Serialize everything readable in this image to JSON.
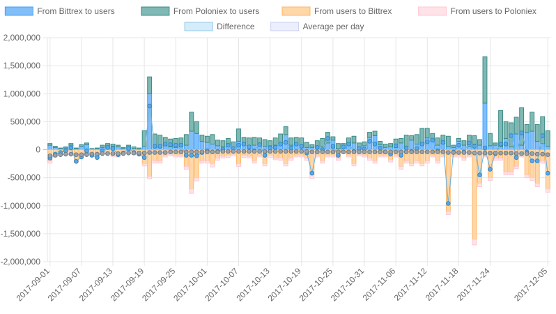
{
  "colors": {
    "bittrex_to_users": "#3fa0ff",
    "poloniex_to_users": "#4a9e98",
    "users_to_bittrex": "#ffb764",
    "users_to_poloniex": "#ffc7d2",
    "difference": "#8fc8ea",
    "average": "#c9cff2",
    "grid": "#e6e6e6",
    "zero_line": "#bdbdbd",
    "text": "#666666"
  },
  "legend": [
    {
      "label": "From Bittrex to users",
      "fill": "#82bef7",
      "stroke": "#3fa0ff"
    },
    {
      "label": "From Poloniex to users",
      "fill": "#7fb8b4",
      "stroke": "#3b8b85"
    },
    {
      "label": "From users to Bittrex",
      "fill": "#ffd7a8",
      "stroke": "#ffb764"
    },
    {
      "label": "From users to Poloniex",
      "fill": "#ffe3e8",
      "stroke": "#ffc7d2"
    },
    {
      "label": "Difference",
      "fill": "#d6ecf8",
      "stroke": "#8fc8ea"
    },
    {
      "label": "Average per day",
      "fill": "#eceefb",
      "stroke": "#c9cff2"
    }
  ],
  "chart_data": {
    "type": "bar",
    "ylim": [
      -2000000,
      2000000
    ],
    "y_ticks": [
      2000000,
      1500000,
      1000000,
      500000,
      0,
      -500000,
      -1000000,
      -1500000,
      -2000000
    ],
    "y_tick_labels": [
      "2,000,000",
      "1,500,000",
      "1,000,000",
      "500,000",
      "0",
      "-500,000",
      "-1,000,000",
      "-1,500,000",
      "-2,000,000"
    ],
    "x_tick_labels": [
      "2017-09-01",
      "2017-09-07",
      "2017-09-13",
      "2017-09-19",
      "2017-09-25",
      "2017-10-01",
      "2017-10-07",
      "2017-10-13",
      "2017-10-19",
      "2017-10-25",
      "2017-10-31",
      "2017-11-06",
      "2017-11-12",
      "2017-11-18",
      "2017-11-24",
      "2017-12-05"
    ],
    "x_tick_indices": [
      0,
      6,
      12,
      18,
      24,
      30,
      36,
      42,
      48,
      54,
      60,
      66,
      72,
      78,
      84,
      95
    ],
    "grid": true,
    "legend_position": "top",
    "series": [
      {
        "name": "From Bittrex to users",
        "stack": "positive",
        "values": [
          80000,
          40000,
          20000,
          30000,
          80000,
          20000,
          60000,
          90000,
          10000,
          20000,
          40000,
          70000,
          60000,
          50000,
          20000,
          50000,
          20000,
          10000,
          60000,
          1000000,
          50000,
          40000,
          70000,
          50000,
          40000,
          60000,
          80000,
          330000,
          290000,
          150000,
          130000,
          100000,
          70000,
          50000,
          100000,
          40000,
          150000,
          120000,
          60000,
          80000,
          100000,
          60000,
          70000,
          80000,
          110000,
          270000,
          80000,
          90000,
          80000,
          40000,
          40000,
          60000,
          50000,
          120000,
          170000,
          20000,
          30000,
          80000,
          120000,
          40000,
          70000,
          220000,
          250000,
          90000,
          40000,
          50000,
          40000,
          120000,
          50000,
          170000,
          100000,
          90000,
          210000,
          170000,
          80000,
          110000,
          60000,
          40000,
          150000,
          80000,
          60000,
          100000,
          80000,
          830000,
          70000,
          80000,
          50000,
          200000,
          50000,
          280000,
          80000,
          310000,
          330000,
          150000,
          110000,
          60000
        ]
      },
      {
        "name": "From Poloniex to users",
        "stack": "positive",
        "values": [
          30000,
          20000,
          10000,
          20000,
          30000,
          10000,
          30000,
          30000,
          10000,
          10000,
          40000,
          40000,
          40000,
          30000,
          20000,
          30000,
          30000,
          20000,
          280000,
          300000,
          230000,
          220000,
          150000,
          140000,
          160000,
          150000,
          190000,
          340000,
          210000,
          110000,
          110000,
          170000,
          100000,
          110000,
          100000,
          100000,
          220000,
          100000,
          150000,
          140000,
          110000,
          120000,
          90000,
          130000,
          170000,
          140000,
          130000,
          130000,
          130000,
          90000,
          50000,
          100000,
          150000,
          190000,
          60000,
          90000,
          80000,
          130000,
          120000,
          80000,
          70000,
          90000,
          80000,
          60000,
          60000,
          60000,
          150000,
          80000,
          210000,
          80000,
          170000,
          290000,
          170000,
          120000,
          130000,
          150000,
          180000,
          40000,
          50000,
          80000,
          200000,
          150000,
          100000,
          830000,
          220000,
          40000,
          650000,
          300000,
          430000,
          300000,
          670000,
          140000,
          340000,
          300000,
          480000,
          280000
        ]
      },
      {
        "name": "From users to Bittrex",
        "stack": "negative",
        "values": [
          -200000,
          -100000,
          -60000,
          -30000,
          -50000,
          -200000,
          -100000,
          -60000,
          -80000,
          -100000,
          -40000,
          -40000,
          -90000,
          -100000,
          -60000,
          -40000,
          -70000,
          -60000,
          -250000,
          -480000,
          -200000,
          -200000,
          -100000,
          -80000,
          -100000,
          -100000,
          -300000,
          -700000,
          -500000,
          -200000,
          -200000,
          -250000,
          -150000,
          -120000,
          -100000,
          -80000,
          -250000,
          -100000,
          -120000,
          -200000,
          -100000,
          -250000,
          -100000,
          -150000,
          -150000,
          -250000,
          -150000,
          -100000,
          -100000,
          -150000,
          -450000,
          -100000,
          -200000,
          -100000,
          -100000,
          -150000,
          -40000,
          -100000,
          -250000,
          -80000,
          -100000,
          -150000,
          -200000,
          -100000,
          -100000,
          -180000,
          -100000,
          -300000,
          -200000,
          -250000,
          -200000,
          -250000,
          -200000,
          -100000,
          -200000,
          -100000,
          -1100000,
          -100000,
          -100000,
          -150000,
          -100000,
          -1600000,
          -600000,
          -100000,
          -500000,
          -150000,
          -150000,
          -400000,
          -400000,
          -300000,
          -100000,
          -450000,
          -500000,
          -600000,
          -200000,
          -700000
        ]
      },
      {
        "name": "From users to Poloniex",
        "stack": "negative",
        "values": [
          -40000,
          -30000,
          -20000,
          -30000,
          -20000,
          -30000,
          -20000,
          -20000,
          -30000,
          -30000,
          -30000,
          -30000,
          -30000,
          -30000,
          -20000,
          -30000,
          -20000,
          -30000,
          -40000,
          -40000,
          -40000,
          -40000,
          -30000,
          -30000,
          -30000,
          -30000,
          -50000,
          -80000,
          -60000,
          -40000,
          -40000,
          -60000,
          -40000,
          -30000,
          -40000,
          -30000,
          -50000,
          -40000,
          -30000,
          -40000,
          -30000,
          -40000,
          -40000,
          -30000,
          -40000,
          -40000,
          -40000,
          -30000,
          -30000,
          -40000,
          -60000,
          -30000,
          -40000,
          -30000,
          -30000,
          -40000,
          -30000,
          -30000,
          -40000,
          -30000,
          -30000,
          -40000,
          -40000,
          -30000,
          -30000,
          -40000,
          -30000,
          -50000,
          -40000,
          -40000,
          -40000,
          -40000,
          -40000,
          -30000,
          -40000,
          -30000,
          -60000,
          -30000,
          -30000,
          -40000,
          -30000,
          -100000,
          -60000,
          -30000,
          -50000,
          -40000,
          -40000,
          -50000,
          -50000,
          -40000,
          -30000,
          -50000,
          -50000,
          -60000,
          -40000,
          -60000
        ]
      },
      {
        "name": "Difference",
        "type": "line",
        "values": [
          -150000,
          -80000,
          -50000,
          -20000,
          30000,
          -210000,
          -130000,
          -20000,
          -100000,
          -140000,
          -20000,
          40000,
          20000,
          -90000,
          -60000,
          20000,
          -50000,
          -80000,
          -140000,
          780000,
          60000,
          60000,
          100000,
          90000,
          80000,
          80000,
          -100000,
          -100000,
          -110000,
          -50000,
          -20000,
          -40000,
          -30000,
          10000,
          80000,
          20000,
          80000,
          100000,
          50000,
          -20000,
          90000,
          -100000,
          30000,
          40000,
          100000,
          130000,
          30000,
          100000,
          60000,
          -60000,
          -420000,
          40000,
          0,
          200000,
          60000,
          -100000,
          50000,
          100000,
          -30000,
          20000,
          10000,
          150000,
          100000,
          30000,
          -40000,
          -80000,
          70000,
          -100000,
          30000,
          -30000,
          20000,
          100000,
          140000,
          170000,
          -20000,
          130000,
          -960000,
          -40000,
          80000,
          -40000,
          120000,
          60000,
          -450000,
          30000,
          -350000,
          -70000,
          100000,
          100000,
          250000,
          -140000,
          300000,
          -40000,
          -200000,
          -200000,
          250000,
          -420000
        ]
      },
      {
        "name": "Average per day",
        "type": "line",
        "values": [
          -110000,
          -100000,
          -90000,
          -80000,
          -80000,
          -90000,
          -90000,
          -90000,
          -80000,
          -80000,
          -70000,
          -70000,
          -70000,
          -70000,
          -70000,
          -60000,
          -60000,
          -60000,
          -60000,
          -50000,
          -50000,
          -50000,
          -50000,
          -40000,
          -40000,
          -40000,
          -40000,
          -40000,
          -40000,
          -40000,
          -40000,
          -40000,
          -40000,
          -30000,
          -30000,
          -30000,
          -30000,
          -30000,
          -30000,
          -30000,
          -30000,
          -30000,
          -30000,
          -30000,
          -30000,
          -30000,
          -30000,
          -30000,
          -30000,
          -30000,
          -40000,
          -40000,
          -40000,
          -40000,
          -40000,
          -40000,
          -40000,
          -40000,
          -40000,
          -40000,
          -40000,
          -40000,
          -40000,
          -40000,
          -40000,
          -40000,
          -40000,
          -40000,
          -40000,
          -40000,
          -40000,
          -40000,
          -40000,
          -40000,
          -40000,
          -40000,
          -50000,
          -50000,
          -50000,
          -50000,
          -50000,
          -60000,
          -60000,
          -60000,
          -60000,
          -60000,
          -60000,
          -60000,
          -60000,
          -70000,
          -70000,
          -70000,
          -70000,
          -80000,
          -80000,
          -90000
        ]
      }
    ]
  }
}
